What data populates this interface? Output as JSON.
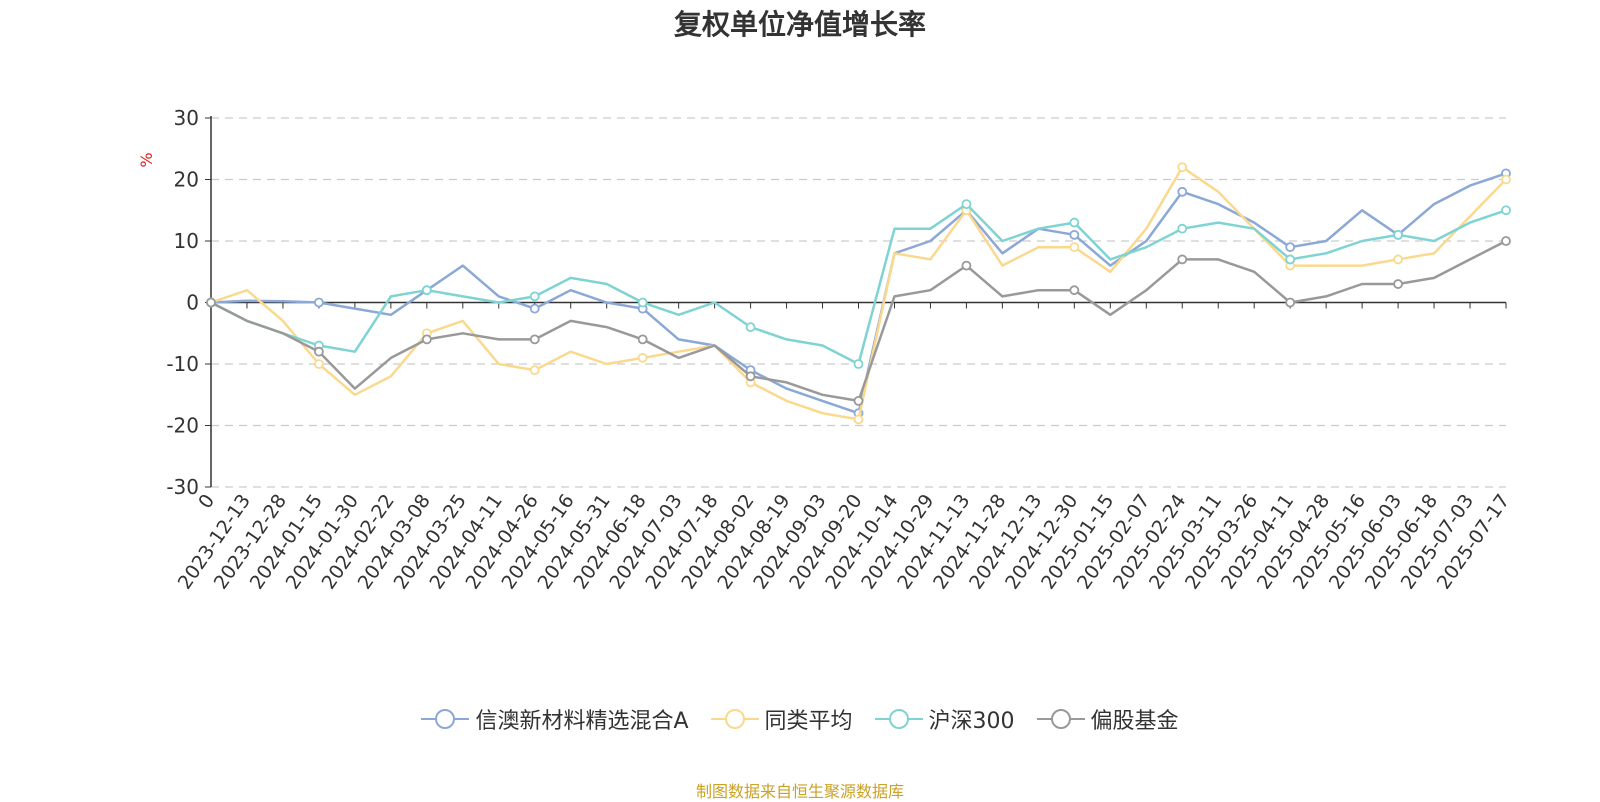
{
  "chart_data": {
    "type": "line",
    "title": "复权单位净值增长率",
    "ylabel": "%",
    "ylim": [
      -30,
      30
    ],
    "yticks": [
      30,
      20,
      10,
      0,
      -10,
      -20,
      -30
    ],
    "grid": true,
    "legend_position": "bottom",
    "categories": [
      "0",
      "2023-12-13",
      "2023-12-28",
      "2024-01-15",
      "2024-01-30",
      "2024-02-22",
      "2024-03-08",
      "2024-03-25",
      "2024-04-11",
      "2024-04-26",
      "2024-05-16",
      "2024-05-31",
      "2024-06-18",
      "2024-07-03",
      "2024-07-18",
      "2024-08-02",
      "2024-08-19",
      "2024-09-03",
      "2024-09-20",
      "2024-10-14",
      "2024-10-29",
      "2024-11-13",
      "2024-11-28",
      "2024-12-13",
      "2024-12-30",
      "2025-01-15",
      "2025-02-07",
      "2025-02-24",
      "2025-03-11",
      "2025-03-26",
      "2025-04-11",
      "2025-04-28",
      "2025-05-16",
      "2025-06-03",
      "2025-06-18",
      "2025-07-03",
      "2025-07-17"
    ],
    "series": [
      {
        "name": "信澳新材料精选混合A",
        "color": "#8ba8d6",
        "values": [
          0,
          0.3,
          0.2,
          0,
          -1,
          -2,
          2,
          6,
          1,
          -1,
          2,
          0,
          -1,
          -6,
          -7,
          -11,
          -14,
          -16,
          -18,
          8,
          10,
          15,
          8,
          12,
          11,
          6,
          10,
          18,
          16,
          13,
          9,
          10,
          15,
          11,
          16,
          19,
          21
        ]
      },
      {
        "name": "同类平均",
        "color": "#fad98f",
        "values": [
          0,
          2,
          -3,
          -10,
          -15,
          -12,
          -5,
          -3,
          -10,
          -11,
          -8,
          -10,
          -9,
          -8,
          -7,
          -13,
          -16,
          -18,
          -19,
          8,
          7,
          15,
          6,
          9,
          9,
          5,
          12,
          22,
          18,
          12,
          6,
          6,
          6,
          7,
          8,
          14,
          20
        ]
      },
      {
        "name": "沪深300",
        "color": "#7fd3d3",
        "values": [
          0,
          -3,
          -5,
          -7,
          -8,
          1,
          2,
          1,
          0,
          1,
          4,
          3,
          0,
          -2,
          0,
          -4,
          -6,
          -7,
          -10,
          12,
          12,
          16,
          10,
          12,
          13,
          7,
          9,
          12,
          13,
          12,
          7,
          8,
          10,
          11,
          10,
          13,
          15
        ]
      },
      {
        "name": "偏股基金",
        "color": "#999999",
        "values": [
          0,
          -3,
          -5,
          -8,
          -14,
          -9,
          -6,
          -5,
          -6,
          -6,
          -3,
          -4,
          -6,
          -9,
          -7,
          -12,
          -13,
          -15,
          -16,
          1,
          2,
          6,
          1,
          2,
          2,
          -2,
          2,
          7,
          7,
          5,
          0,
          1,
          3,
          3,
          4,
          7,
          10
        ]
      }
    ]
  },
  "footer": {
    "text": "制图数据来自恒生聚源数据库"
  }
}
